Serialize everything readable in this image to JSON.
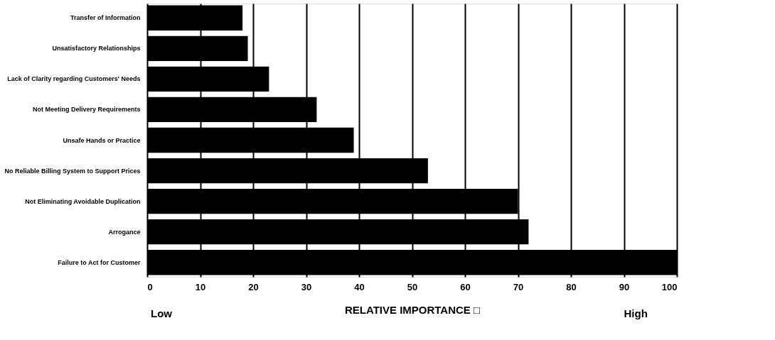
{
  "chart_data": {
    "type": "bar",
    "orientation": "horizontal",
    "categories": [
      "Transfer of Information",
      "Unsatisfactory Relationships",
      "Lack of Clarity regarding Customers' Needs",
      "Not Meeting Delivery Requirements",
      "Unsafe Hands or Practice",
      "No Reliable Billing System to Support Prices",
      "Not Eliminating Avoidable Duplication",
      "Arrogance",
      "Failure to Act for Customer"
    ],
    "values": [
      18,
      19,
      23,
      32,
      39,
      53,
      70,
      72,
      100
    ],
    "color": "#000000",
    "xlim": [
      0,
      100
    ],
    "xticks": [
      0,
      10,
      20,
      30,
      40,
      50,
      60,
      70,
      80,
      90,
      100
    ],
    "xlabel": "RELATIVE IMPORTANCE □",
    "annotations": [
      "Low",
      "High"
    ],
    "grid": "x"
  }
}
